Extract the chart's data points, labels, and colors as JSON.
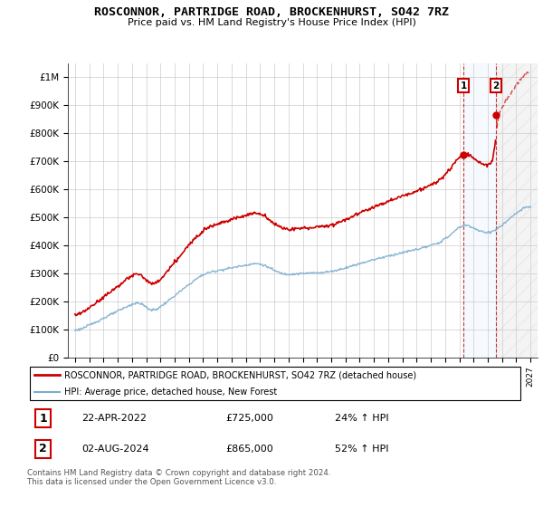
{
  "title": "ROSCONNOR, PARTRIDGE ROAD, BROCKENHURST, SO42 7RZ",
  "subtitle": "Price paid vs. HM Land Registry's House Price Index (HPI)",
  "legend_line1": "ROSCONNOR, PARTRIDGE ROAD, BROCKENHURST, SO42 7RZ (detached house)",
  "legend_line2": "HPI: Average price, detached house, New Forest",
  "annotation1_date": "22-APR-2022",
  "annotation1_price": "£725,000",
  "annotation1_hpi": "24% ↑ HPI",
  "annotation2_date": "02-AUG-2024",
  "annotation2_price": "£865,000",
  "annotation2_hpi": "52% ↑ HPI",
  "footer": "Contains HM Land Registry data © Crown copyright and database right 2024.\nThis data is licensed under the Open Government Licence v3.0.",
  "red_color": "#cc0000",
  "blue_color": "#7aadcf",
  "annotation_box_color": "#cc0000",
  "shaded_blue_color": "#ddeeff",
  "shaded_hatch_color": "#e8e8e8",
  "ylim": [
    0,
    1050000
  ],
  "yticks": [
    0,
    100000,
    200000,
    300000,
    400000,
    500000,
    600000,
    700000,
    800000,
    900000,
    1000000
  ],
  "ytick_labels": [
    "£0",
    "£100K",
    "£200K",
    "£300K",
    "£400K",
    "£500K",
    "£600K",
    "£700K",
    "£800K",
    "£900K",
    "£1M"
  ],
  "sale1_year": 2022.3,
  "sale1_price": 725000,
  "sale2_year": 2024.58,
  "sale2_price": 865000
}
